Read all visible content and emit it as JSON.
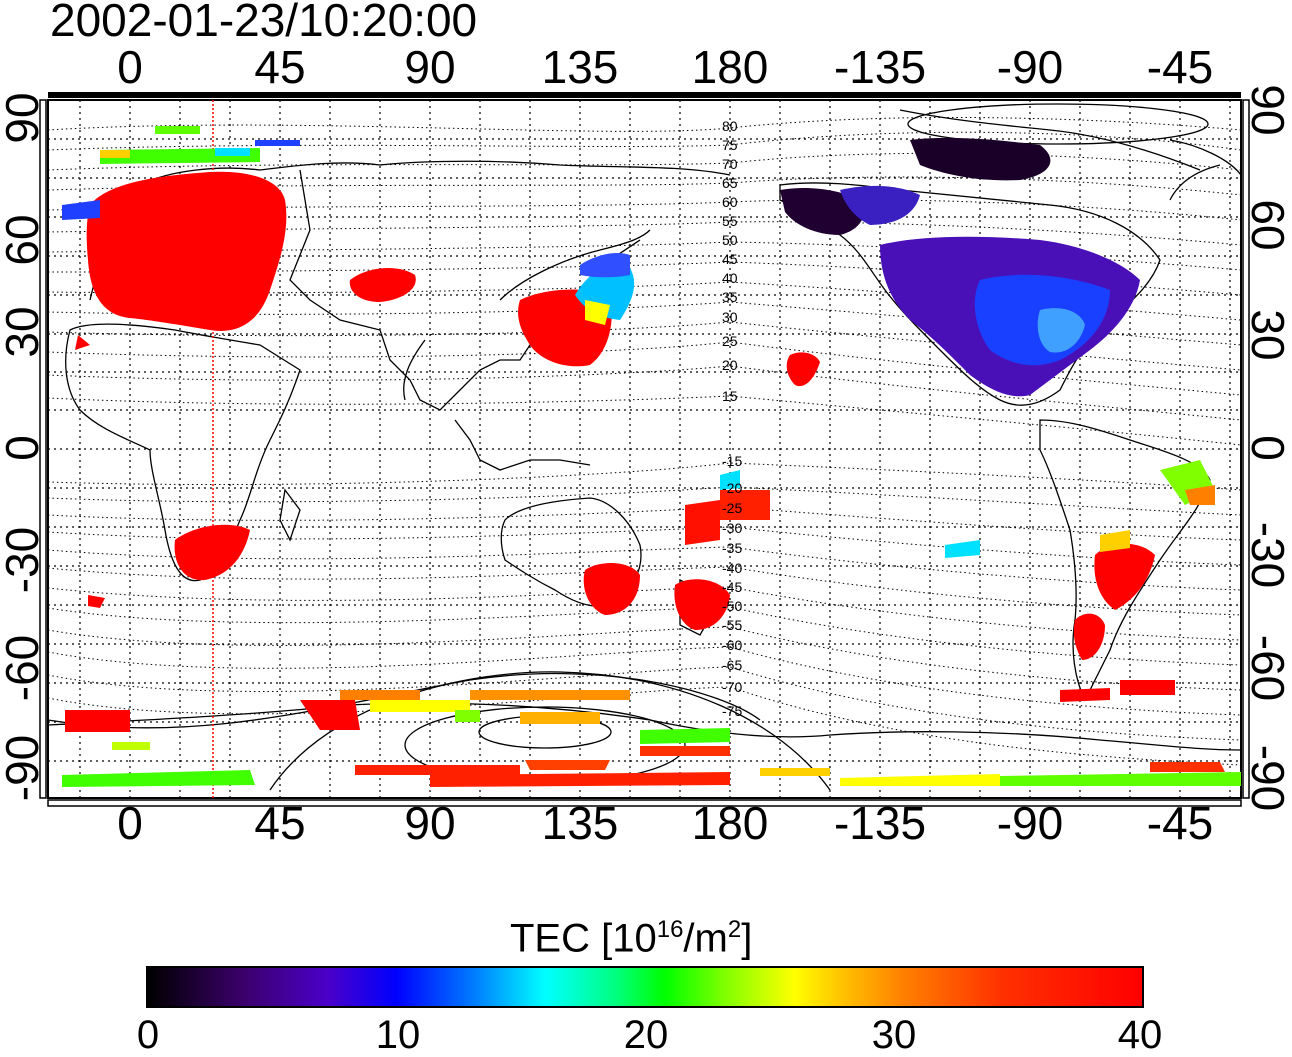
{
  "title": "2002-01-23/10:20:00",
  "longitude_labels": [
    "0",
    "45",
    "90",
    "135",
    "180",
    "-135",
    "-90",
    "-45"
  ],
  "latitude_labels": [
    "90",
    "60",
    "30",
    "0",
    "-30",
    "-60",
    "-90"
  ],
  "magnetic_latitude_labels": [
    "80",
    "75",
    "70",
    "65",
    "60",
    "55",
    "50",
    "45",
    "40",
    "35",
    "30",
    "25",
    "20",
    "15",
    "-15",
    "-20",
    "-25",
    "-30",
    "-35",
    "-40",
    "-45",
    "-50",
    "-55",
    "-60",
    "-65",
    "-70",
    "-75"
  ],
  "colorbar": {
    "label_main": "TEC  [10",
    "label_sup1": "16",
    "label_mid": "/m",
    "label_sup2": "2",
    "label_end": "]",
    "ticks": [
      "0",
      "10",
      "20",
      "30",
      "40"
    ]
  },
  "legend_colors": {
    "low": "#000000",
    "mid_low": "#0000ff",
    "mid": "#00ff00",
    "mid_high": "#ffff00",
    "high": "#ff0000"
  }
}
